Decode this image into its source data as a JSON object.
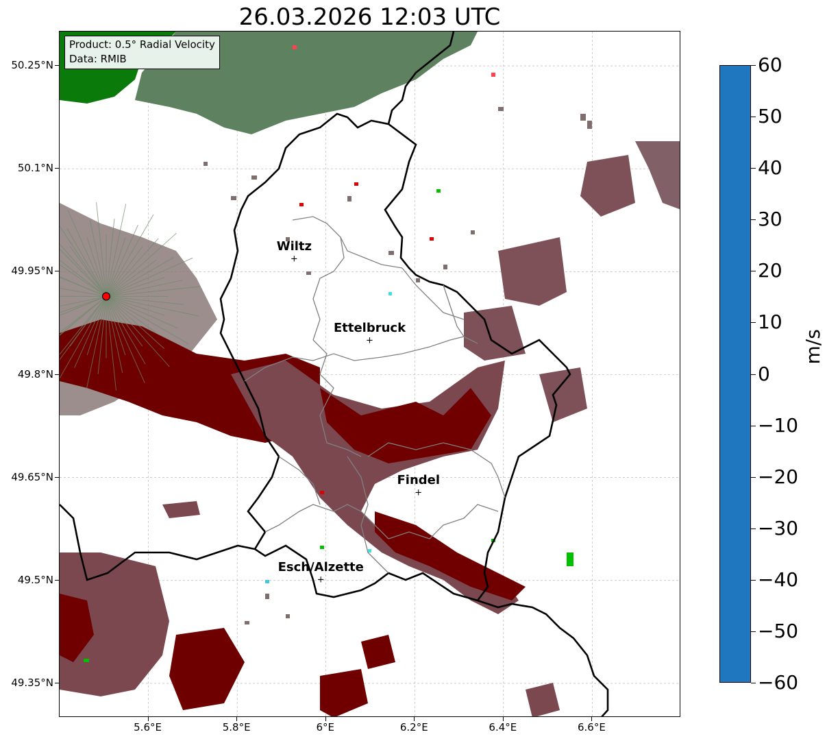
{
  "title": "26.03.2026 12:03 UTC",
  "info_box": {
    "product": "Product: 0.5° Radial Velocity",
    "data_source": "Data: RMIB"
  },
  "map": {
    "lon_range": [
      5.4,
      6.8
    ],
    "lat_range": [
      49.3,
      50.3
    ],
    "lat_ticks": [
      {
        "value": 50.25,
        "label": "50.25°N"
      },
      {
        "value": 50.1,
        "label": "50.1°N"
      },
      {
        "value": 49.95,
        "label": "49.95°N"
      },
      {
        "value": 49.8,
        "label": "49.8°N"
      },
      {
        "value": 49.65,
        "label": "49.65°N"
      },
      {
        "value": 49.5,
        "label": "49.5°N"
      },
      {
        "value": 49.35,
        "label": "49.35°N"
      }
    ],
    "lon_ticks": [
      {
        "value": 5.6,
        "label": "5.6°E"
      },
      {
        "value": 5.8,
        "label": "5.8°E"
      },
      {
        "value": 6.0,
        "label": "6°E"
      },
      {
        "value": 6.2,
        "label": "6.2°E"
      },
      {
        "value": 6.4,
        "label": "6.4°E"
      },
      {
        "value": 6.6,
        "label": "6.6°E"
      }
    ],
    "radar_site": {
      "lon": 5.505,
      "lat": 49.914,
      "color": "#ff0000"
    },
    "cities": [
      {
        "name": "Wiltz",
        "lon": 5.93,
        "lat": 49.967
      },
      {
        "name": "Ettelbruck",
        "lon": 6.1,
        "lat": 49.848
      },
      {
        "name": "Findel",
        "lon": 6.21,
        "lat": 49.627
      },
      {
        "name": "Esch/Alzette",
        "lon": 5.99,
        "lat": 49.5
      }
    ]
  },
  "colorbar": {
    "unit": "m/s",
    "vmin": -60,
    "vmax": 60,
    "ticks": [
      {
        "value": 60,
        "label": "60"
      },
      {
        "value": 50,
        "label": "50"
      },
      {
        "value": 40,
        "label": "40"
      },
      {
        "value": 30,
        "label": "30"
      },
      {
        "value": 20,
        "label": "20"
      },
      {
        "value": 10,
        "label": "10"
      },
      {
        "value": 0,
        "label": "0"
      },
      {
        "value": -10,
        "label": "−10"
      },
      {
        "value": -20,
        "label": "−20"
      },
      {
        "value": -30,
        "label": "−30"
      },
      {
        "value": -40,
        "label": "−40"
      },
      {
        "value": -50,
        "label": "−50"
      },
      {
        "value": -60,
        "label": "−60"
      }
    ],
    "stops": [
      {
        "from": -60,
        "to": -58,
        "color": "#1f77c0"
      },
      {
        "from": -58,
        "to": -56,
        "color": "#22a0d0"
      },
      {
        "from": -56,
        "to": -54,
        "color": "#24bcd8"
      },
      {
        "from": -54,
        "to": -52,
        "color": "#26d8e0"
      },
      {
        "from": -52,
        "to": -48,
        "color": "#30e0e0"
      },
      {
        "from": -48,
        "to": -44,
        "color": "#56e4e4"
      },
      {
        "from": -44,
        "to": -40,
        "color": "#8ce8ea"
      },
      {
        "from": -40,
        "to": -36,
        "color": "#b8f0f0"
      },
      {
        "from": -36,
        "to": -34,
        "color": "#88f0a8"
      },
      {
        "from": -34,
        "to": -32,
        "color": "#66ee80"
      },
      {
        "from": -32,
        "to": -30,
        "color": "#48f060"
      },
      {
        "from": -30,
        "to": -28,
        "color": "#26ee40"
      },
      {
        "from": -28,
        "to": -22,
        "color": "#00e000"
      },
      {
        "from": -22,
        "to": -16,
        "color": "#00c000"
      },
      {
        "from": -16,
        "to": -12,
        "color": "#00a000"
      },
      {
        "from": -12,
        "to": -8,
        "color": "#006800"
      },
      {
        "from": -8,
        "to": -4,
        "color": "#5a7e5a"
      },
      {
        "from": -4,
        "to": 0,
        "color": "#6e8a6a"
      },
      {
        "from": 0,
        "to": 2,
        "color": "#857676"
      },
      {
        "from": 2,
        "to": 5,
        "color": "#846470"
      },
      {
        "from": 5,
        "to": 8,
        "color": "#80404a"
      },
      {
        "from": 8,
        "to": 10,
        "color": "#7a0000"
      },
      {
        "from": 10,
        "to": 14,
        "color": "#900000"
      },
      {
        "from": 14,
        "to": 18,
        "color": "#b00000"
      },
      {
        "from": 18,
        "to": 22,
        "color": "#d00000"
      },
      {
        "from": 22,
        "to": 28,
        "color": "#ee0000"
      },
      {
        "from": 28,
        "to": 32,
        "color": "#ff4050"
      },
      {
        "from": 32,
        "to": 36,
        "color": "#ff6080"
      },
      {
        "from": 36,
        "to": 40,
        "color": "#ff80b0"
      },
      {
        "from": 40,
        "to": 44,
        "color": "#ffa0c8"
      },
      {
        "from": 44,
        "to": 48,
        "color": "#ffb8c0"
      },
      {
        "from": 48,
        "to": 52,
        "color": "#ffd8a0"
      },
      {
        "from": 52,
        "to": 56,
        "color": "#ffc080"
      },
      {
        "from": 56,
        "to": 60,
        "color": "#ffa050"
      }
    ]
  }
}
